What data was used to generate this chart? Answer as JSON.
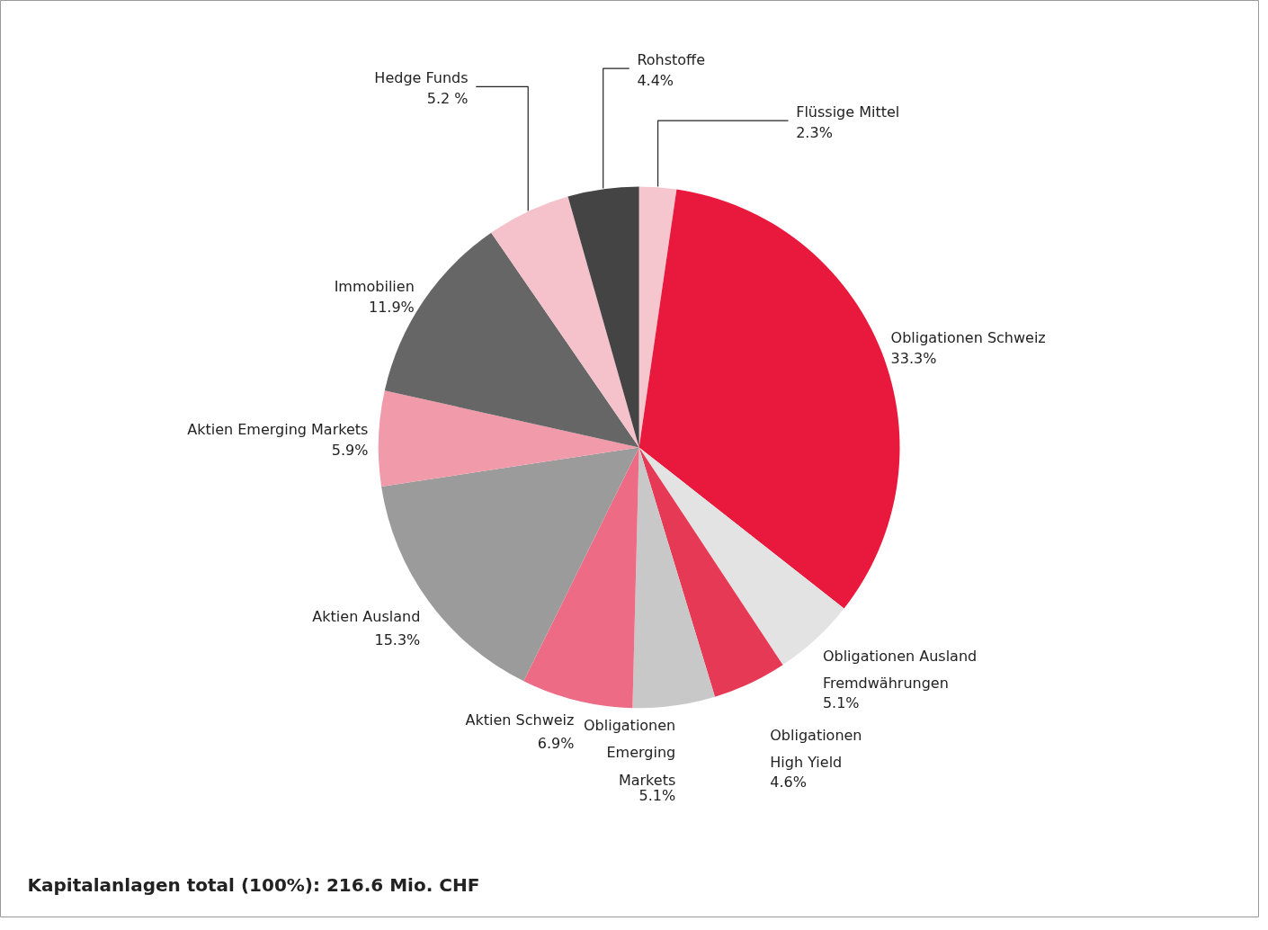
{
  "chart_data": {
    "type": "pie",
    "categories": [
      "Flüssige Mittel",
      "Obligationen Schweiz",
      "Obligationen Ausland\nFremdwährungen",
      "Obligationen\nHigh Yield",
      "Obligationen\nEmerging\nMarkets",
      "Aktien Schweiz",
      "Aktien Ausland",
      "Aktien Emerging Markets",
      "Immobilien",
      "Hedge Funds",
      "Rohstoffe"
    ],
    "values": [
      2.3,
      33.3,
      5.1,
      4.6,
      5.1,
      6.9,
      15.3,
      5.9,
      11.9,
      5.2,
      4.4
    ],
    "value_labels": [
      "2.3%",
      "33.3%",
      "5.1%",
      "4.6%",
      "5.1%",
      "6.9%",
      "15.3%",
      "5.9%",
      "11.9%",
      "5.2 %",
      "4.4%"
    ],
    "colors": [
      "#f6c6cf",
      "#e8193c",
      "#e3e3e3",
      "#e63956",
      "#c8c8c8",
      "#ee6b85",
      "#9b9b9b",
      "#f09aaa",
      "#666666",
      "#f5c2cb",
      "#444444"
    ],
    "annotations": [
      "Kapitalanlagen total (100%): 216.6 Mio. CHF"
    ]
  }
}
